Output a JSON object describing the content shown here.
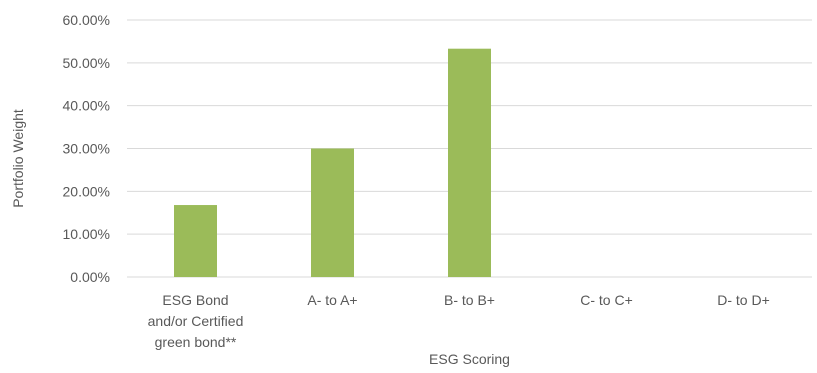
{
  "chart_data": {
    "type": "bar",
    "categories": [
      [
        "ESG Bond",
        "and/or Certified",
        "green bond**"
      ],
      [
        "A- to A+"
      ],
      [
        "B- to B+"
      ],
      [
        "C- to C+"
      ],
      [
        "D- to D+"
      ]
    ],
    "values": [
      16.8,
      30.0,
      53.3,
      0,
      0
    ],
    "xlabel": "ESG Scoring",
    "ylabel": "Portfolio Weight",
    "ylim": [
      0,
      60
    ],
    "yticks": [
      0,
      10,
      20,
      30,
      40,
      50,
      60
    ],
    "ytick_labels": [
      "0.00%",
      "10.00%",
      "20.00%",
      "30.00%",
      "40.00%",
      "50.00%",
      "60.00%"
    ],
    "grid": true,
    "legend": "none",
    "colors": {
      "bar": "#9bbb59",
      "grid": "#d9d9d9",
      "text": "#595959"
    }
  }
}
